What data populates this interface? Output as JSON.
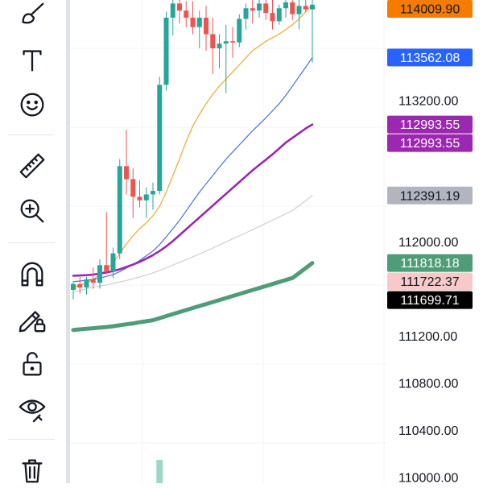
{
  "toolbar": {
    "tools": [
      {
        "id": "brush",
        "icon": "brush-icon"
      },
      {
        "id": "text",
        "icon": "text-icon"
      },
      {
        "id": "emoji",
        "icon": "emoji-icon"
      },
      {
        "id": "ruler",
        "icon": "ruler-icon"
      },
      {
        "id": "zoom-in",
        "icon": "zoom-in-icon"
      },
      {
        "id": "magnet",
        "icon": "magnet-icon"
      },
      {
        "id": "lock-drawings",
        "icon": "pencil-lock-icon"
      },
      {
        "id": "unlock",
        "icon": "unlock-icon"
      },
      {
        "id": "hide",
        "icon": "eye-icon"
      },
      {
        "id": "delete",
        "icon": "trash-icon"
      }
    ]
  },
  "chart_data": {
    "type": "candlestick",
    "title": "",
    "price_axis": {
      "labels": [
        "113200.00",
        "112000.00",
        "111200.00",
        "110800.00",
        "110400.00",
        "110000.00"
      ],
      "ylim": [
        109950,
        114050
      ]
    },
    "grid": true,
    "price_tags": [
      {
        "value": 114009.9,
        "text": "114009.90",
        "bg": "#f57c00",
        "fg": "#131722"
      },
      {
        "value": 113562.08,
        "text": "113562.08",
        "bg": "#2962ff",
        "fg": "#ffffff"
      },
      {
        "value": 112993.55,
        "text": "112993.55",
        "bg": "#9c27b0",
        "fg": "#ffffff"
      },
      {
        "value": 112993.55,
        "text": "112993.55",
        "bg": "#9c27b0",
        "fg": "#ffffff"
      },
      {
        "value": 112391.19,
        "text": "112391.19",
        "bg": "#b2b5be",
        "fg": "#131722"
      },
      {
        "value": 111818.18,
        "text": "111818.18",
        "bg": "#4f9d78",
        "fg": "#ffffff"
      },
      {
        "value": 111722.37,
        "text": "111722.37",
        "bg": "#f7c9c9",
        "fg": "#131722"
      },
      {
        "value": 111699.71,
        "text": "111699.71",
        "bg": "#000000",
        "fg": "#ffffff"
      }
    ],
    "candles": [
      {
        "o": 111590,
        "h": 111660,
        "l": 111510,
        "c": 111640
      },
      {
        "o": 111640,
        "h": 111700,
        "l": 111560,
        "c": 111610
      },
      {
        "o": 111610,
        "h": 111700,
        "l": 111550,
        "c": 111680
      },
      {
        "o": 111680,
        "h": 111780,
        "l": 111600,
        "c": 111650
      },
      {
        "o": 111650,
        "h": 111850,
        "l": 111600,
        "c": 111800
      },
      {
        "o": 111800,
        "h": 112250,
        "l": 111720,
        "c": 111750
      },
      {
        "o": 111750,
        "h": 111950,
        "l": 111690,
        "c": 111900
      },
      {
        "o": 111900,
        "h": 112700,
        "l": 111850,
        "c": 112640
      },
      {
        "o": 112640,
        "h": 112950,
        "l": 112400,
        "c": 112530
      },
      {
        "o": 112530,
        "h": 112620,
        "l": 112200,
        "c": 112380
      },
      {
        "o": 112380,
        "h": 112520,
        "l": 112290,
        "c": 112350
      },
      {
        "o": 112350,
        "h": 112460,
        "l": 112200,
        "c": 112400
      },
      {
        "o": 112400,
        "h": 112500,
        "l": 112270,
        "c": 112430
      },
      {
        "o": 112430,
        "h": 113400,
        "l": 112400,
        "c": 113330
      },
      {
        "o": 113330,
        "h": 113950,
        "l": 113280,
        "c": 113900
      },
      {
        "o": 113900,
        "h": 114050,
        "l": 113750,
        "c": 114020
      },
      {
        "o": 114020,
        "h": 114050,
        "l": 113850,
        "c": 113960
      },
      {
        "o": 113960,
        "h": 114040,
        "l": 113820,
        "c": 113900
      },
      {
        "o": 113900,
        "h": 114040,
        "l": 113760,
        "c": 113820
      },
      {
        "o": 113820,
        "h": 113960,
        "l": 113640,
        "c": 113900
      },
      {
        "o": 113900,
        "h": 114000,
        "l": 113620,
        "c": 113760
      },
      {
        "o": 113760,
        "h": 113900,
        "l": 113420,
        "c": 113640
      },
      {
        "o": 113640,
        "h": 113760,
        "l": 113470,
        "c": 113680
      },
      {
        "o": 113680,
        "h": 113840,
        "l": 113260,
        "c": 113700
      },
      {
        "o": 113700,
        "h": 113820,
        "l": 113560,
        "c": 113690
      },
      {
        "o": 113690,
        "h": 113930,
        "l": 113650,
        "c": 113890
      },
      {
        "o": 113890,
        "h": 114020,
        "l": 113800,
        "c": 113980
      },
      {
        "o": 113980,
        "h": 114050,
        "l": 113850,
        "c": 113960
      },
      {
        "o": 113960,
        "h": 114050,
        "l": 113900,
        "c": 114020
      },
      {
        "o": 114020,
        "h": 114050,
        "l": 113880,
        "c": 113940
      },
      {
        "o": 113940,
        "h": 114050,
        "l": 113800,
        "c": 113870
      },
      {
        "o": 113870,
        "h": 114010,
        "l": 113840,
        "c": 113980
      },
      {
        "o": 113980,
        "h": 114050,
        "l": 113900,
        "c": 114030
      },
      {
        "o": 114030,
        "h": 114050,
        "l": 113880,
        "c": 113930
      },
      {
        "o": 113930,
        "h": 114050,
        "l": 113800,
        "c": 114000
      },
      {
        "o": 114000,
        "h": 114050,
        "l": 113950,
        "c": 113970
      },
      {
        "o": 113970,
        "h": 114050,
        "l": 113520,
        "c": 114010
      }
    ],
    "moving_averages": [
      {
        "color": "#f0a830",
        "width": 1.2,
        "values": [
          111610,
          111630,
          111650,
          111680,
          111720,
          111760,
          111820,
          111900,
          111980,
          112050,
          112110,
          112160,
          112220,
          112300,
          112420,
          112560,
          112700,
          112850,
          112980,
          113080,
          113170,
          113250,
          113320,
          113380,
          113440,
          113500,
          113560,
          113620,
          113660,
          113700,
          113730,
          113760,
          113800,
          113840,
          113890,
          113950,
          114009.9
        ]
      },
      {
        "color": "#4a6fd8",
        "width": 1.2,
        "values": [
          111660,
          111665,
          111672,
          111680,
          111690,
          111705,
          111720,
          111745,
          111775,
          111805,
          111840,
          111880,
          111920,
          111975,
          112040,
          112110,
          112180,
          112260,
          112340,
          112420,
          112490,
          112560,
          112630,
          112700,
          112760,
          112820,
          112880,
          112940,
          112995,
          113050,
          113110,
          113170,
          113240,
          113320,
          113400,
          113480,
          113562.08
        ]
      },
      {
        "color": "#9c27b0",
        "width": 2.6,
        "values": [
          111710,
          111712,
          111715,
          111720,
          111728,
          111738,
          111750,
          111765,
          111785,
          111805,
          111828,
          111855,
          111885,
          111920,
          111960,
          112005,
          112055,
          112105,
          112155,
          112205,
          112255,
          112305,
          112355,
          112405,
          112455,
          112505,
          112555,
          112605,
          112650,
          112695,
          112740,
          112790,
          112840,
          112880,
          112920,
          112960,
          112993.55
        ]
      },
      {
        "color": "#cfcfcf",
        "width": 1.2,
        "values": [
          111570,
          111585,
          111600,
          111612,
          111622,
          111633,
          111645,
          111657,
          111670,
          111684,
          111699,
          111715,
          111734,
          111755,
          111778,
          111801,
          111824,
          111847,
          111871,
          111895,
          111920,
          111945,
          111971,
          111997,
          112023,
          112049,
          112075,
          112101,
          112128,
          112155,
          112182,
          112209,
          112236,
          112264,
          112305,
          112348,
          112391.19
        ]
      },
      {
        "color": "#4f9d78",
        "width": 5,
        "values": [
          111250,
          111255,
          111260,
          111265,
          111270,
          111275,
          111282,
          111290,
          111298,
          111306,
          111315,
          111324,
          111333,
          111350,
          111368,
          111385,
          111402,
          111419,
          111436,
          111453,
          111470,
          111487,
          111504,
          111521,
          111538,
          111555,
          111572,
          111589,
          111606,
          111623,
          111640,
          111657,
          111674,
          111691,
          111732,
          111775,
          111818.18
        ]
      }
    ],
    "volume_bars": [
      {
        "index": 13,
        "color": "#9ed7c8"
      }
    ]
  }
}
